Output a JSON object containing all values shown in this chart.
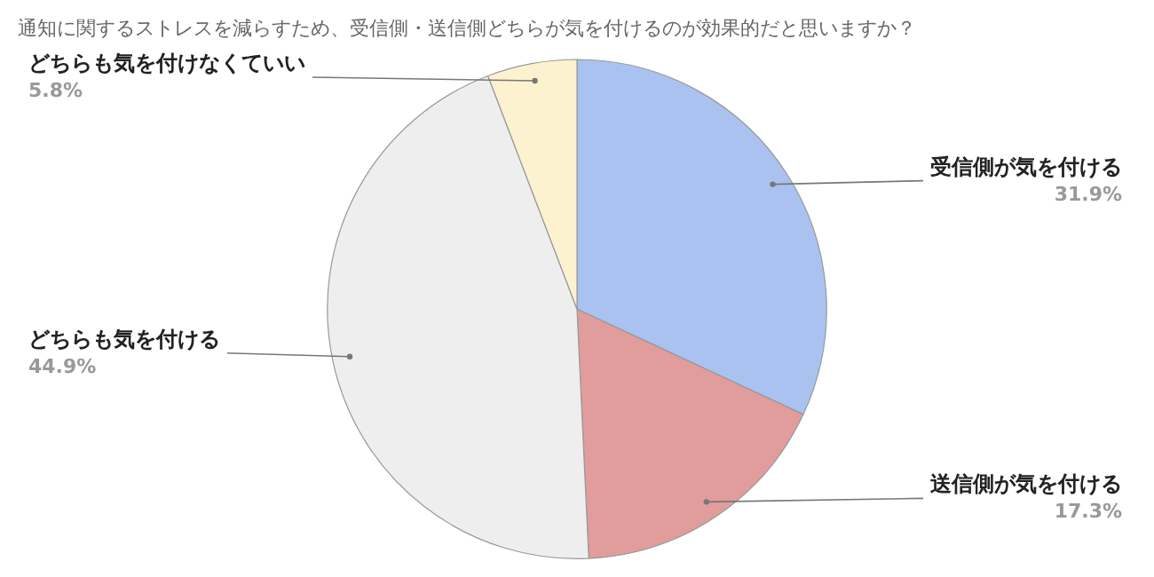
{
  "chart_data": {
    "type": "pie",
    "title": "通知に関するストレスを減らすため、受信側・送信側どちらが気を付けるのが効果的だと思いますか？",
    "categories": [
      "受信側が気を付ける",
      "送信側が気を付ける",
      "どちらも気を付ける",
      "どちらも気を付けなくていい"
    ],
    "values": [
      31.9,
      17.3,
      44.9,
      5.8
    ],
    "colors": [
      "#a9c2f0",
      "#e09d9c",
      "#eeeeee",
      "#fdf2cf"
    ],
    "value_labels": [
      "31.9%",
      "17.3%",
      "44.9%",
      "5.8%"
    ],
    "legend": false
  }
}
